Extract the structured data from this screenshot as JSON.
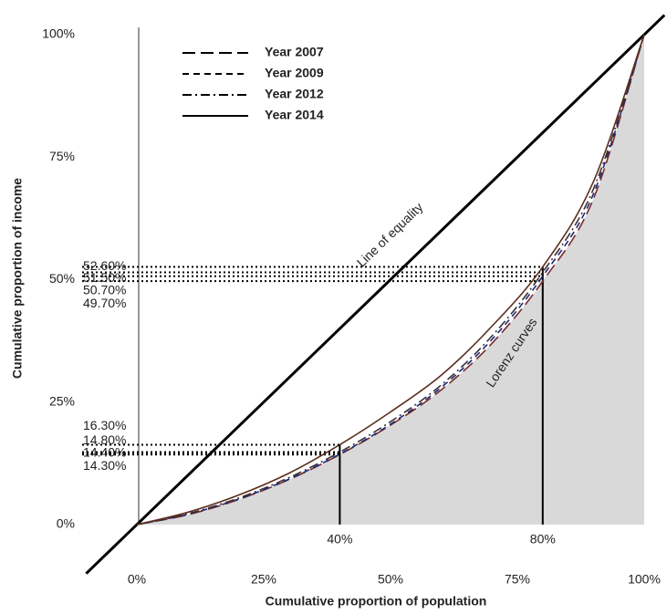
{
  "chart_data": {
    "type": "line",
    "xlabel": "Cumulative proportion of population",
    "ylabel": "Cumulative proportion of income",
    "x": [
      0,
      10,
      20,
      30,
      40,
      50,
      60,
      70,
      80,
      90,
      100
    ],
    "series": [
      {
        "name": "Year 2007",
        "color": "#7a2a2a",
        "dash": "14,6",
        "values": [
          0,
          2,
          5.1,
          9.2,
          14.3,
          20.3,
          27.5,
          37,
          49.7,
          66.5,
          100
        ],
        "value_labels": [
          null,
          null,
          null,
          null,
          "14.30%",
          null,
          null,
          null,
          "49.70%",
          null,
          null
        ]
      },
      {
        "name": "Year 2009",
        "color": "#1c2a78",
        "dash": "7,5",
        "values": [
          0,
          2.1,
          5.2,
          9.3,
          14.4,
          20.5,
          28,
          37.8,
          50.7,
          67.5,
          100
        ],
        "value_labels": [
          null,
          null,
          null,
          null,
          "14.40%",
          null,
          null,
          null,
          "50.70%",
          null,
          null
        ]
      },
      {
        "name": "Year 2012",
        "color": "#3a3030",
        "dash": "10,4,2,4",
        "values": [
          0,
          2.2,
          5.4,
          9.6,
          14.8,
          21,
          28.5,
          38.5,
          51.5,
          68.5,
          100
        ],
        "value_labels": [
          null,
          null,
          null,
          null,
          "14.80%",
          null,
          null,
          null,
          "51.50%",
          null,
          null
        ]
      },
      {
        "name": "Year 2014",
        "color": "#5a2e1e",
        "dash": "none",
        "values": [
          0,
          2.5,
          6,
          10.5,
          16.3,
          23,
          30.5,
          40.5,
          52.6,
          70,
          100
        ],
        "value_labels": [
          null,
          null,
          null,
          null,
          "16.30%",
          null,
          null,
          null,
          "52.60%",
          null,
          null
        ]
      }
    ],
    "xlim": [
      0,
      100
    ],
    "ylim": [
      0,
      100
    ],
    "xticks": [
      {
        "value": 0,
        "label": "0%"
      },
      {
        "value": 25,
        "label": "25%"
      },
      {
        "value": 50,
        "label": "50%"
      },
      {
        "value": 75,
        "label": "75%"
      },
      {
        "value": 100,
        "label": "100%"
      }
    ],
    "yticks": [
      {
        "value": 0,
        "label": "0%"
      },
      {
        "value": 25,
        "label": "25%"
      },
      {
        "value": 50,
        "label": "50%"
      },
      {
        "value": 75,
        "label": "75%"
      },
      {
        "value": 100,
        "label": "100%"
      }
    ],
    "markers": [
      {
        "value": 40,
        "label": "40%"
      },
      {
        "value": 80,
        "label": "80%"
      }
    ],
    "annotations": [
      "Line of equality",
      "Lorenz curves"
    ],
    "legend": "upper left",
    "shade_color": "#d9d9d9"
  }
}
